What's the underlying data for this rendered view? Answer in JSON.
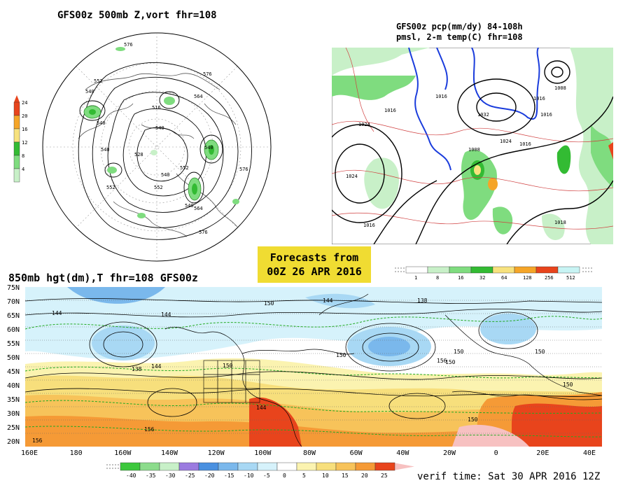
{
  "panel_500mb": {
    "title": "GFS00z  500mb Z,vort    fhr=108",
    "colorbar": {
      "labels": [
        "24",
        "20",
        "16",
        "12",
        "8",
        "4"
      ],
      "colors": [
        "#e8441c",
        "#f5a528",
        "#f7e27e",
        "#33bb33",
        "#7fdc7f",
        "#c8f0c8"
      ]
    },
    "contour_labels": [
      "576",
      "552",
      "540",
      "576",
      "564",
      "540",
      "552",
      "540",
      "516",
      "540",
      "528",
      "540",
      "552",
      "564",
      "576",
      "540",
      "540",
      "552",
      "576"
    ]
  },
  "panel_pcp": {
    "title_line1": "GFS00z pcp(mm/dy) 84-108h",
    "title_line2": "pmsl, 2-m temp(C)  fhr=108",
    "colorbar": {
      "labels": [
        "1",
        "8",
        "16",
        "32",
        "64",
        "128",
        "256",
        "512"
      ],
      "colors": [
        "#ffffff",
        "#c8f0c8",
        "#7fdc7f",
        "#33bb33",
        "#f7e27e",
        "#f5a528",
        "#e8441c",
        "#c8f4f4"
      ]
    },
    "contour_labels": [
      "1016",
      "1016",
      "1024",
      "1032",
      "1024",
      "1008",
      "1016",
      "1016",
      "1008",
      "1024",
      "1016",
      "1018",
      "1016"
    ]
  },
  "forecast_box": {
    "line1": "Forecasts from",
    "line2": "00Z 26 APR 2016",
    "color": "#f0dc32"
  },
  "panel_850mb": {
    "title": "850mb hgt(dm),T  fhr=108 GFS00z",
    "lat_labels": [
      "75N",
      "70N",
      "65N",
      "60N",
      "55N",
      "50N",
      "45N",
      "40N",
      "35N",
      "30N",
      "25N",
      "20N"
    ],
    "lon_labels": [
      "160E",
      "180",
      "160W",
      "140W",
      "120W",
      "100W",
      "80W",
      "60W",
      "40W",
      "20W",
      "0",
      "20E",
      "40E"
    ],
    "contour_labels": [
      "144",
      "144",
      "150",
      "144",
      "138",
      "138",
      "144",
      "150",
      "150",
      "150",
      "150",
      "156",
      "156",
      "150",
      "144",
      "150",
      "156",
      "150"
    ],
    "colorbar": {
      "labels": [
        "-40",
        "-35",
        "-30",
        "-25",
        "-20",
        "-15",
        "-10",
        "-5",
        "0",
        "5",
        "10",
        "15",
        "20",
        "25"
      ],
      "colors": [
        "#3cc83c",
        "#8cdc8c",
        "#c8f0c8",
        "#9b7be0",
        "#4a90e0",
        "#7ab8ec",
        "#a8d8f4",
        "#d6f2fb",
        "#ffffff",
        "#fbf3b0",
        "#f7df7c",
        "#f7c35a",
        "#f59a36",
        "#e8441c"
      ]
    }
  },
  "verif_time": "verif time: Sat 30 APR 2016 12Z"
}
